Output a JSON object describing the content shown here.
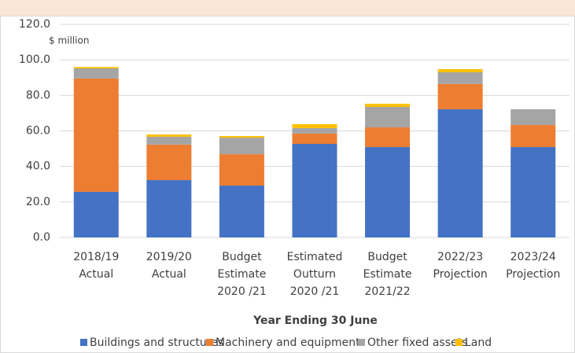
{
  "chart_data": {
    "type": "stacked_bar",
    "annotation": "$ million",
    "x_label": "Year Ending 30 June",
    "categories": [
      [
        "2018/19",
        "Actual"
      ],
      [
        "2019/20",
        "Actual"
      ],
      [
        "Budget",
        "Estimate",
        "2020 /21"
      ],
      [
        "Estimated",
        "Outturn",
        "2020 /21"
      ],
      [
        "Budget",
        "Estimate",
        "2021/22"
      ],
      [
        "2022/23",
        "Projection"
      ],
      [
        "2023/24",
        "Projection"
      ]
    ],
    "series": [
      {
        "name": "Buildings and structures",
        "color": "#4472c4",
        "values": [
          25.7,
          32.3,
          29.2,
          52.7,
          50.9,
          72.2,
          50.9
        ]
      },
      {
        "name": "Machinery and equipment",
        "color": "#ed7d31",
        "values": [
          63.8,
          20.0,
          17.7,
          5.8,
          11.1,
          14.2,
          12.4
        ]
      },
      {
        "name": "Other fixed assets",
        "color": "#a5a5a5",
        "values": [
          5.7,
          4.4,
          9.3,
          3.1,
          11.5,
          6.6,
          8.9
        ]
      },
      {
        "name": "Land",
        "color": "#ffc000",
        "values": [
          0.8,
          1.3,
          0.9,
          2.2,
          1.8,
          1.8,
          0
        ]
      }
    ],
    "ylim": [
      0,
      120
    ],
    "yticks": [
      {
        "value": 0,
        "label": "0.0"
      },
      {
        "value": 20,
        "label": "20.0"
      },
      {
        "value": 40,
        "label": "40.0"
      },
      {
        "value": 60,
        "label": "60.0"
      },
      {
        "value": 80,
        "label": "80.0"
      },
      {
        "value": 100,
        "label": "100.0"
      },
      {
        "value": 120,
        "label": "120.0"
      }
    ],
    "grid": true,
    "legend": "bottom"
  }
}
